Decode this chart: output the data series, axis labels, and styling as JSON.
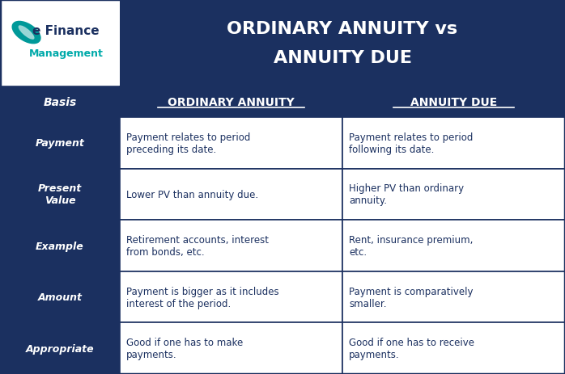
{
  "title_line1": "ORDINARY ANNUITY vs",
  "title_line2": "ANNUITY DUE",
  "title_bg": "#1b3060",
  "title_text_color": "#ffffff",
  "header_bg": "#1b3060",
  "header_text_color": "#ffffff",
  "basis_bg": "#1b3060",
  "basis_text_color": "#ffffff",
  "content_text_color": "#1b3060",
  "border_color": "#1b3060",
  "logo_bg": "#ffffff",
  "headers": [
    "Basis",
    "ORDINARY ANNUITY",
    "ANNUITY DUE"
  ],
  "rows": [
    {
      "basis": "Payment",
      "ordinary": "Payment relates to period\npreceding its date.",
      "due": "Payment relates to period\nfollowing its date."
    },
    {
      "basis": "Present\nValue",
      "ordinary": "Lower PV than annuity due.",
      "due": "Higher PV than ordinary\nannuity."
    },
    {
      "basis": "Example",
      "ordinary": "Retirement accounts, interest\nfrom bonds, etc.",
      "due": "Rent, insurance premium,\netc."
    },
    {
      "basis": "Amount",
      "ordinary": "Payment is bigger as it includes\ninterest of the period.",
      "due": "Payment is comparatively\nsmaller."
    },
    {
      "basis": "Appropriate",
      "ordinary": "Good if one has to make\npayments.",
      "due": "Good if one has to receive\npayments."
    }
  ],
  "fig_w": 6.98,
  "fig_h": 4.64,
  "dpi": 100
}
